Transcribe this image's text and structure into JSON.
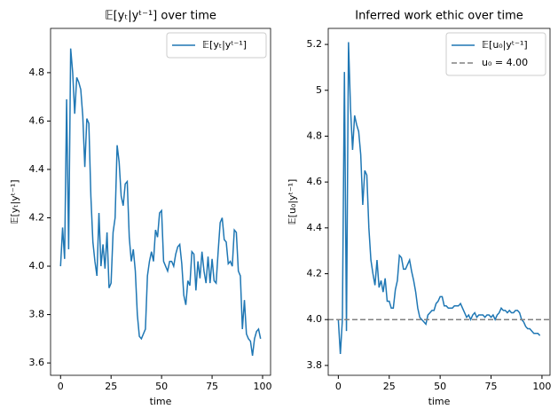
{
  "chart_data": [
    {
      "type": "line",
      "title": "𝔼[yₜ|yᵗ⁻¹] over time",
      "xlabel": "time",
      "ylabel": "𝔼[yₜ|yᵗ⁻¹]",
      "x": [
        0,
        1,
        2,
        3,
        4,
        5,
        6,
        7,
        8,
        9,
        10,
        11,
        12,
        13,
        14,
        15,
        16,
        17,
        18,
        19,
        20,
        21,
        22,
        23,
        24,
        25,
        26,
        27,
        28,
        29,
        30,
        31,
        32,
        33,
        34,
        35,
        36,
        37,
        38,
        39,
        40,
        41,
        42,
        43,
        44,
        45,
        46,
        47,
        48,
        49,
        50,
        51,
        52,
        53,
        54,
        55,
        56,
        57,
        58,
        59,
        60,
        61,
        62,
        63,
        64,
        65,
        66,
        67,
        68,
        69,
        70,
        71,
        72,
        73,
        74,
        75,
        76,
        77,
        78,
        79,
        80,
        81,
        82,
        83,
        84,
        85,
        86,
        87,
        88,
        89,
        90,
        91,
        92,
        93,
        94,
        95,
        96,
        97,
        98,
        99
      ],
      "series": [
        {
          "name": "𝔼[yₜ|yᵗ⁻¹]",
          "color": "#1f77b4",
          "values": [
            4.0,
            4.16,
            4.03,
            4.69,
            4.07,
            4.9,
            4.8,
            4.63,
            4.78,
            4.76,
            4.73,
            4.62,
            4.41,
            4.61,
            4.59,
            4.29,
            4.1,
            4.02,
            3.96,
            4.22,
            4.0,
            4.09,
            3.99,
            4.14,
            3.91,
            3.93,
            4.14,
            4.2,
            4.5,
            4.43,
            4.29,
            4.25,
            4.34,
            4.35,
            4.12,
            4.02,
            4.07,
            3.98,
            3.8,
            3.71,
            3.7,
            3.72,
            3.74,
            3.96,
            4.02,
            4.06,
            4.02,
            4.15,
            4.12,
            4.22,
            4.23,
            4.02,
            4.0,
            3.98,
            4.02,
            4.02,
            4.0,
            4.05,
            4.08,
            4.09,
            4.01,
            3.88,
            3.84,
            3.94,
            3.92,
            4.06,
            4.05,
            3.9,
            4.02,
            3.95,
            4.06,
            3.98,
            3.93,
            4.04,
            3.93,
            4.03,
            3.94,
            3.93,
            4.06,
            4.18,
            4.2,
            4.11,
            4.1,
            4.01,
            4.02,
            4.0,
            4.15,
            4.14,
            3.98,
            3.96,
            3.74,
            3.86,
            3.72,
            3.7,
            3.69,
            3.63,
            3.7,
            3.73,
            3.74,
            3.7
          ]
        }
      ],
      "xlim": [
        -4.95,
        103.95
      ],
      "xticks": [
        0,
        25,
        50,
        75,
        100
      ],
      "ylim": [
        3.549,
        4.983
      ],
      "yticks": [
        3.6,
        3.8,
        {
          "value": 4,
          "label": "4.0"
        },
        4.2,
        4.4,
        4.6,
        4.8
      ],
      "legend": "upper right"
    },
    {
      "type": "line",
      "title": "Inferred work ethic over time",
      "xlabel": "time",
      "ylabel": "𝔼[u₀|yᵗ⁻¹]",
      "x": [
        0,
        1,
        2,
        3,
        4,
        5,
        6,
        7,
        8,
        9,
        10,
        11,
        12,
        13,
        14,
        15,
        16,
        17,
        18,
        19,
        20,
        21,
        22,
        23,
        24,
        25,
        26,
        27,
        28,
        29,
        30,
        31,
        32,
        33,
        34,
        35,
        36,
        37,
        38,
        39,
        40,
        41,
        42,
        43,
        44,
        45,
        46,
        47,
        48,
        49,
        50,
        51,
        52,
        53,
        54,
        55,
        56,
        57,
        58,
        59,
        60,
        61,
        62,
        63,
        64,
        65,
        66,
        67,
        68,
        69,
        70,
        71,
        72,
        73,
        74,
        75,
        76,
        77,
        78,
        79,
        80,
        81,
        82,
        83,
        84,
        85,
        86,
        87,
        88,
        89,
        90,
        91,
        92,
        93,
        94,
        95,
        96,
        97,
        98,
        99
      ],
      "series": [
        {
          "name": "𝔼[u₀|yᵗ⁻¹]",
          "color": "#1f77b4",
          "values": [
            4.0,
            3.85,
            4.0,
            5.08,
            3.95,
            5.21,
            4.92,
            4.74,
            4.89,
            4.85,
            4.82,
            4.72,
            4.5,
            4.65,
            4.63,
            4.4,
            4.26,
            4.2,
            4.15,
            4.26,
            4.14,
            4.17,
            4.12,
            4.18,
            4.08,
            4.08,
            4.05,
            4.05,
            4.13,
            4.17,
            4.28,
            4.27,
            4.22,
            4.22,
            4.24,
            4.26,
            4.21,
            4.17,
            4.12,
            4.05,
            4.01,
            4.0,
            3.99,
            3.98,
            4.02,
            4.03,
            4.04,
            4.04,
            4.07,
            4.08,
            4.1,
            4.1,
            4.06,
            4.06,
            4.05,
            4.05,
            4.05,
            4.06,
            4.06,
            4.06,
            4.07,
            4.05,
            4.03,
            4.01,
            4.02,
            4.0,
            4.02,
            4.03,
            4.01,
            4.02,
            4.02,
            4.02,
            4.01,
            4.02,
            4.02,
            4.01,
            4.02,
            4.0,
            4.02,
            4.03,
            4.05,
            4.04,
            4.04,
            4.03,
            4.04,
            4.03,
            4.03,
            4.04,
            4.04,
            4.03,
            4.0,
            3.99,
            3.97,
            3.96,
            3.96,
            3.95,
            3.94,
            3.94,
            3.94,
            3.93
          ]
        }
      ],
      "hline": {
        "name": "u₀ = 4.00",
        "value": 4.0,
        "color": "#808080",
        "dashed": true
      },
      "xlim": [
        -4.95,
        103.95
      ],
      "xticks": [
        0,
        25,
        50,
        75,
        100
      ],
      "ylim": [
        3.757,
        5.27
      ],
      "yticks": [
        3.8,
        {
          "value": 4,
          "label": "4.0"
        },
        4.2,
        4.4,
        4.6,
        4.8,
        5.0,
        5.2
      ],
      "legend": "upper right"
    }
  ]
}
